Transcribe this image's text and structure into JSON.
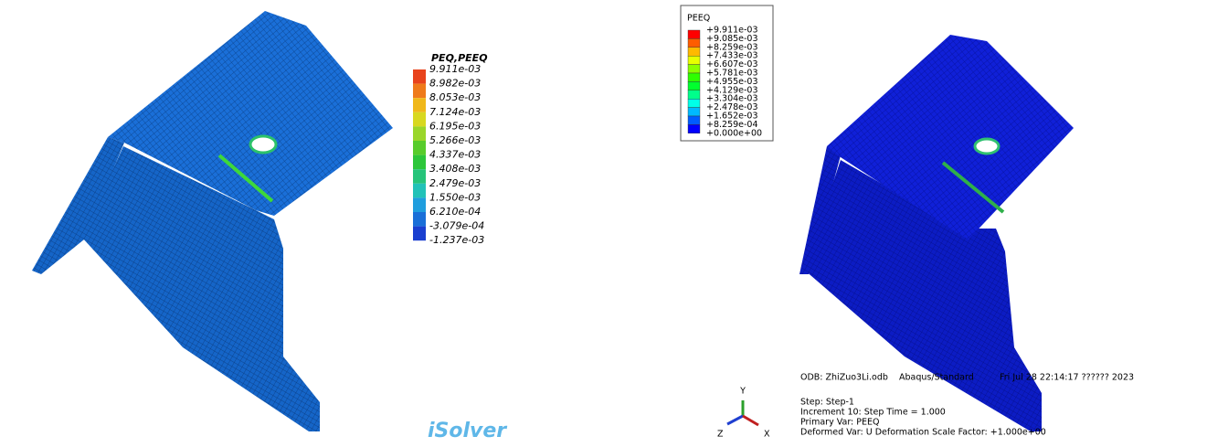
{
  "left_panel": {
    "legend": {
      "title": "PEQ,PEEQ",
      "labels": [
        "9.911e-03",
        "8.982e-03",
        "8.053e-03",
        "7.124e-03",
        "6.195e-03",
        "5.266e-03",
        "4.337e-03",
        "3.408e-03",
        "2.479e-03",
        "1.550e-03",
        "6.210e-04",
        "-3.079e-04",
        "-1.237e-03"
      ]
    },
    "watermark": "iSolver"
  },
  "right_panel": {
    "legend": {
      "title": "PEEQ",
      "labels": [
        "+9.911e-03",
        "+9.085e-03",
        "+8.259e-03",
        "+7.433e-03",
        "+6.607e-03",
        "+5.781e-03",
        "+4.955e-03",
        "+4.129e-03",
        "+3.304e-03",
        "+2.478e-03",
        "+1.652e-03",
        "+8.259e-04",
        "+0.000e+00"
      ]
    },
    "triad": {
      "y": "Y",
      "z": "Z",
      "x": "X"
    },
    "info": {
      "odb": "ODB: ZhiZuo3Li.odb",
      "solver": "Abaqus/Standard",
      "date": "Fri Jul 28 22:14:17 ?????? 2023",
      "step": "Step: Step-1",
      "increment": "Increment     10: Step Time =    1.000",
      "primary": "Primary Var: PEEQ",
      "deformed": "Deformed Var: U   Deformation Scale Factor: +1.000e+00"
    }
  }
}
